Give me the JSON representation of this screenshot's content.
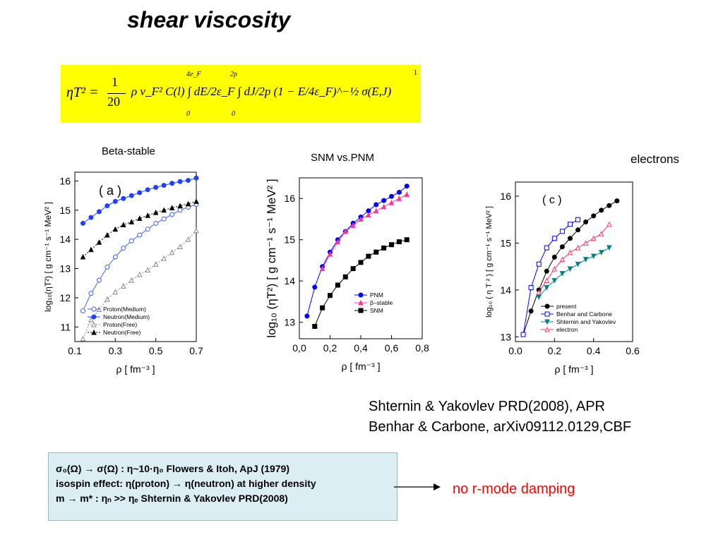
{
  "title": "shear viscosity",
  "formula": {
    "lhs": "ηT² =",
    "frac1_num": "1",
    "frac1_den": "20",
    "body": "ρ v_F² C(l) ∫ dE/2ε_F ∫ dJ/2p (1 − E/4ε_F)^−½ σ(E,J)",
    "int1_lower": "0",
    "int1_upper": "4e_F",
    "int2_lower": "0",
    "int2_upper": "2p",
    "exp": "1"
  },
  "captions": {
    "beta_stable": "Beta-stable",
    "snm_vs_pnm": "SNM vs.PNM",
    "electrons": "electrons"
  },
  "references": [
    "Shternin & Yakovlev PRD(2008), APR",
    "Benhar & Carbone, arXiv09112.0129,CBF"
  ],
  "note_lines": [
    "σ₀(Ω) → σ(Ω) : η~10·η₀  Flowers & Itoh, ApJ (1979)",
    "isospin effect: η(proton) → η(neutron) at higher density",
    "m →  m* : ηₙ >> ηₑ Shternin & Yakovlev PRD(2008)"
  ],
  "arrow_note": "no r-mode damping",
  "colors": {
    "highlight": "#ffff00",
    "note_bg": "#dbeef4",
    "red": "#ff0000",
    "blue": "#0000ff",
    "teal": "#008080",
    "pink": "#ff3399",
    "magenta": "#ff0066"
  },
  "chart_data": [
    {
      "type": "line",
      "panel_label": "( a )",
      "xlabel": "ρ [ fm⁻³ ]",
      "ylabel": "log₁₀(ηT²) [ g cm⁻¹ s⁻¹ MeV² ]",
      "xlim": [
        0.1,
        0.7
      ],
      "ylim": [
        10.5,
        16.3
      ],
      "xticks": [
        0.1,
        0.3,
        0.5,
        0.7
      ],
      "xtick_labels": [
        "0.1",
        "0.3",
        "0.5",
        "0.7"
      ],
      "yticks": [
        11,
        12,
        13,
        14,
        15,
        16
      ],
      "ytick_labels": [
        "11",
        "12",
        "13",
        "14",
        "15",
        "16"
      ],
      "legend_position": "bottom-right",
      "series": [
        {
          "name": "Proton(Medium)",
          "color": "#4060ff",
          "marker": "circle-open",
          "dash": "solid",
          "x": [
            0.14,
            0.18,
            0.22,
            0.26,
            0.3,
            0.34,
            0.38,
            0.42,
            0.46,
            0.5,
            0.54,
            0.58,
            0.62,
            0.66,
            0.7
          ],
          "y": [
            11.55,
            12.15,
            12.6,
            13.05,
            13.4,
            13.7,
            13.95,
            14.15,
            14.35,
            14.55,
            14.7,
            14.85,
            15.0,
            15.1,
            15.2
          ]
        },
        {
          "name": "Neutron(Medium)",
          "color": "#2040ff",
          "marker": "circle",
          "dash": "solid",
          "x": [
            0.14,
            0.18,
            0.22,
            0.26,
            0.3,
            0.34,
            0.38,
            0.42,
            0.46,
            0.5,
            0.54,
            0.58,
            0.62,
            0.66,
            0.7
          ],
          "y": [
            14.55,
            14.75,
            14.95,
            15.15,
            15.3,
            15.4,
            15.5,
            15.6,
            15.7,
            15.78,
            15.85,
            15.92,
            15.98,
            16.02,
            16.1
          ]
        },
        {
          "name": "Proton(Free)",
          "color": "#888888",
          "marker": "triangle-open",
          "dash": "dotted",
          "x": [
            0.14,
            0.18,
            0.22,
            0.26,
            0.3,
            0.34,
            0.38,
            0.42,
            0.46,
            0.5,
            0.54,
            0.58,
            0.62,
            0.66,
            0.7
          ],
          "y": [
            10.6,
            11.25,
            11.6,
            11.95,
            12.2,
            12.4,
            12.6,
            12.8,
            12.95,
            13.15,
            13.35,
            13.55,
            13.75,
            14.0,
            14.3
          ]
        },
        {
          "name": "Neutron(Free)",
          "color": "#000000",
          "marker": "triangle",
          "dash": "dotted",
          "x": [
            0.14,
            0.18,
            0.22,
            0.26,
            0.3,
            0.34,
            0.38,
            0.42,
            0.46,
            0.5,
            0.54,
            0.58,
            0.62,
            0.66,
            0.7
          ],
          "y": [
            13.4,
            13.65,
            13.9,
            14.15,
            14.35,
            14.5,
            14.6,
            14.72,
            14.82,
            14.92,
            15.0,
            15.08,
            15.15,
            15.22,
            15.3
          ]
        }
      ]
    },
    {
      "type": "line",
      "xlabel": "ρ [ fm⁻³ ]",
      "ylabel": "log₁₀ (ηT²) [ g cm⁻¹ s⁻¹ MeV² ]",
      "xlim": [
        0.0,
        0.8
      ],
      "ylim": [
        12.6,
        16.5
      ],
      "xticks": [
        0.0,
        0.2,
        0.4,
        0.6,
        0.8
      ],
      "xtick_labels": [
        "0,0",
        "0,2",
        "0,4",
        "0,6",
        "0,8"
      ],
      "yticks": [
        13,
        14,
        15,
        16
      ],
      "ytick_labels": [
        "13",
        "14",
        "15",
        "16"
      ],
      "legend_position": "bottom-right",
      "series": [
        {
          "name": "PNM",
          "color": "#0000ff",
          "marker": "circle",
          "dash": "solid",
          "x": [
            0.05,
            0.1,
            0.15,
            0.2,
            0.25,
            0.3,
            0.35,
            0.4,
            0.45,
            0.5,
            0.55,
            0.6,
            0.65,
            0.7
          ],
          "y": [
            13.15,
            13.85,
            14.35,
            14.7,
            15.0,
            15.2,
            15.4,
            15.55,
            15.7,
            15.85,
            15.95,
            16.05,
            16.15,
            16.3
          ]
        },
        {
          "name": "β–stable",
          "color": "#ff3399",
          "marker": "triangle",
          "dash": "solid",
          "x": [
            0.15,
            0.2,
            0.25,
            0.3,
            0.35,
            0.4,
            0.45,
            0.5,
            0.55,
            0.6,
            0.65,
            0.7
          ],
          "y": [
            14.3,
            14.65,
            14.95,
            15.2,
            15.35,
            15.5,
            15.6,
            15.7,
            15.8,
            15.9,
            16.0,
            16.1
          ]
        },
        {
          "name": "SNM",
          "color": "#000000",
          "marker": "square",
          "dash": "solid",
          "x": [
            0.1,
            0.15,
            0.2,
            0.25,
            0.3,
            0.35,
            0.4,
            0.45,
            0.5,
            0.55,
            0.6,
            0.65,
            0.7
          ],
          "y": [
            12.9,
            13.35,
            13.65,
            13.9,
            14.1,
            14.3,
            14.45,
            14.6,
            14.7,
            14.8,
            14.88,
            14.95,
            15.0
          ]
        }
      ]
    },
    {
      "type": "line",
      "panel_label": "( c )",
      "xlabel": "ρ [ fm⁻³ ]",
      "ylabel": "log₁₀ ( η T ² ) [ g cm⁻¹ s⁻¹ MeV² ]",
      "xlim": [
        0.0,
        0.6
      ],
      "ylim": [
        12.9,
        16.3
      ],
      "xticks": [
        0.0,
        0.2,
        0.4,
        0.6
      ],
      "xtick_labels": [
        "0.0",
        "0.2",
        "0.4",
        "0.6"
      ],
      "yticks": [
        13,
        14,
        15,
        16
      ],
      "ytick_labels": [
        "13",
        "14",
        "15",
        "16"
      ],
      "legend_position": "bottom-right",
      "series": [
        {
          "name": "present",
          "color": "#000000",
          "marker": "circle",
          "dash": "solid",
          "x": [
            0.04,
            0.08,
            0.12,
            0.16,
            0.2,
            0.24,
            0.28,
            0.32,
            0.36,
            0.4,
            0.44,
            0.48,
            0.52
          ],
          "y": [
            13.05,
            13.55,
            14.0,
            14.4,
            14.7,
            14.92,
            15.1,
            15.28,
            15.45,
            15.58,
            15.7,
            15.8,
            15.9
          ]
        },
        {
          "name": "Benhar and Carbone",
          "color": "#0000ff",
          "marker": "square-open",
          "dash": "solid",
          "x": [
            0.04,
            0.08,
            0.12,
            0.16,
            0.2,
            0.24,
            0.28,
            0.32
          ],
          "y": [
            13.05,
            14.05,
            14.55,
            14.9,
            15.1,
            15.25,
            15.4,
            15.5
          ]
        },
        {
          "name": "Shternin and Yakovlev",
          "color": "#008080",
          "marker": "triangle-down",
          "dash": "solid",
          "x": [
            0.12,
            0.16,
            0.2,
            0.24,
            0.28,
            0.32,
            0.36,
            0.4,
            0.44,
            0.48
          ],
          "y": [
            13.85,
            14.05,
            14.2,
            14.35,
            14.45,
            14.55,
            14.65,
            14.72,
            14.8,
            14.9
          ]
        },
        {
          "name": "electron",
          "color": "#ff3366",
          "marker": "triangle-open",
          "dash": "solid",
          "x": [
            0.12,
            0.16,
            0.2,
            0.24,
            0.28,
            0.32,
            0.36,
            0.4,
            0.44,
            0.48
          ],
          "y": [
            13.95,
            14.2,
            14.45,
            14.65,
            14.8,
            14.9,
            15.0,
            15.1,
            15.2,
            15.4
          ]
        }
      ]
    }
  ]
}
